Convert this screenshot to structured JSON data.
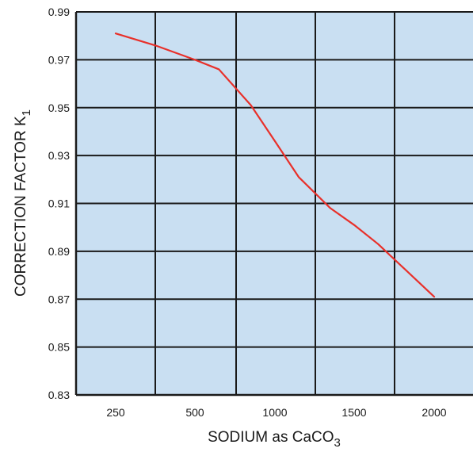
{
  "chart_data": {
    "type": "line",
    "title": "",
    "xlabel": "SODIUM as CaCO",
    "xlabel_subscript": "3",
    "ylabel": "CORRECTION FACTOR K",
    "ylabel_subscript": "1",
    "categories": [
      "250",
      "500",
      "1000",
      "1500",
      "2000"
    ],
    "ylim": [
      0.83,
      0.99
    ],
    "yticks": [
      "0.99",
      "0.97",
      "0.95",
      "0.93",
      "0.91",
      "0.89",
      "0.87",
      "0.85",
      "0.83"
    ],
    "grid": true,
    "x_scale_note": "categorical (non-linear) sodium axis",
    "series": [
      {
        "name": "",
        "color": "#e8302a",
        "x": [
          250,
          375,
          500,
          650,
          850,
          1000,
          1150,
          1350,
          1500,
          1650,
          2000
        ],
        "y": [
          0.981,
          0.976,
          0.97,
          0.966,
          0.951,
          0.936,
          0.921,
          0.908,
          0.901,
          0.893,
          0.871
        ]
      }
    ],
    "colors": {
      "plot_background": "#c9dff2",
      "grid": "#1a1a1a",
      "frame": "#1a1a1a"
    }
  }
}
